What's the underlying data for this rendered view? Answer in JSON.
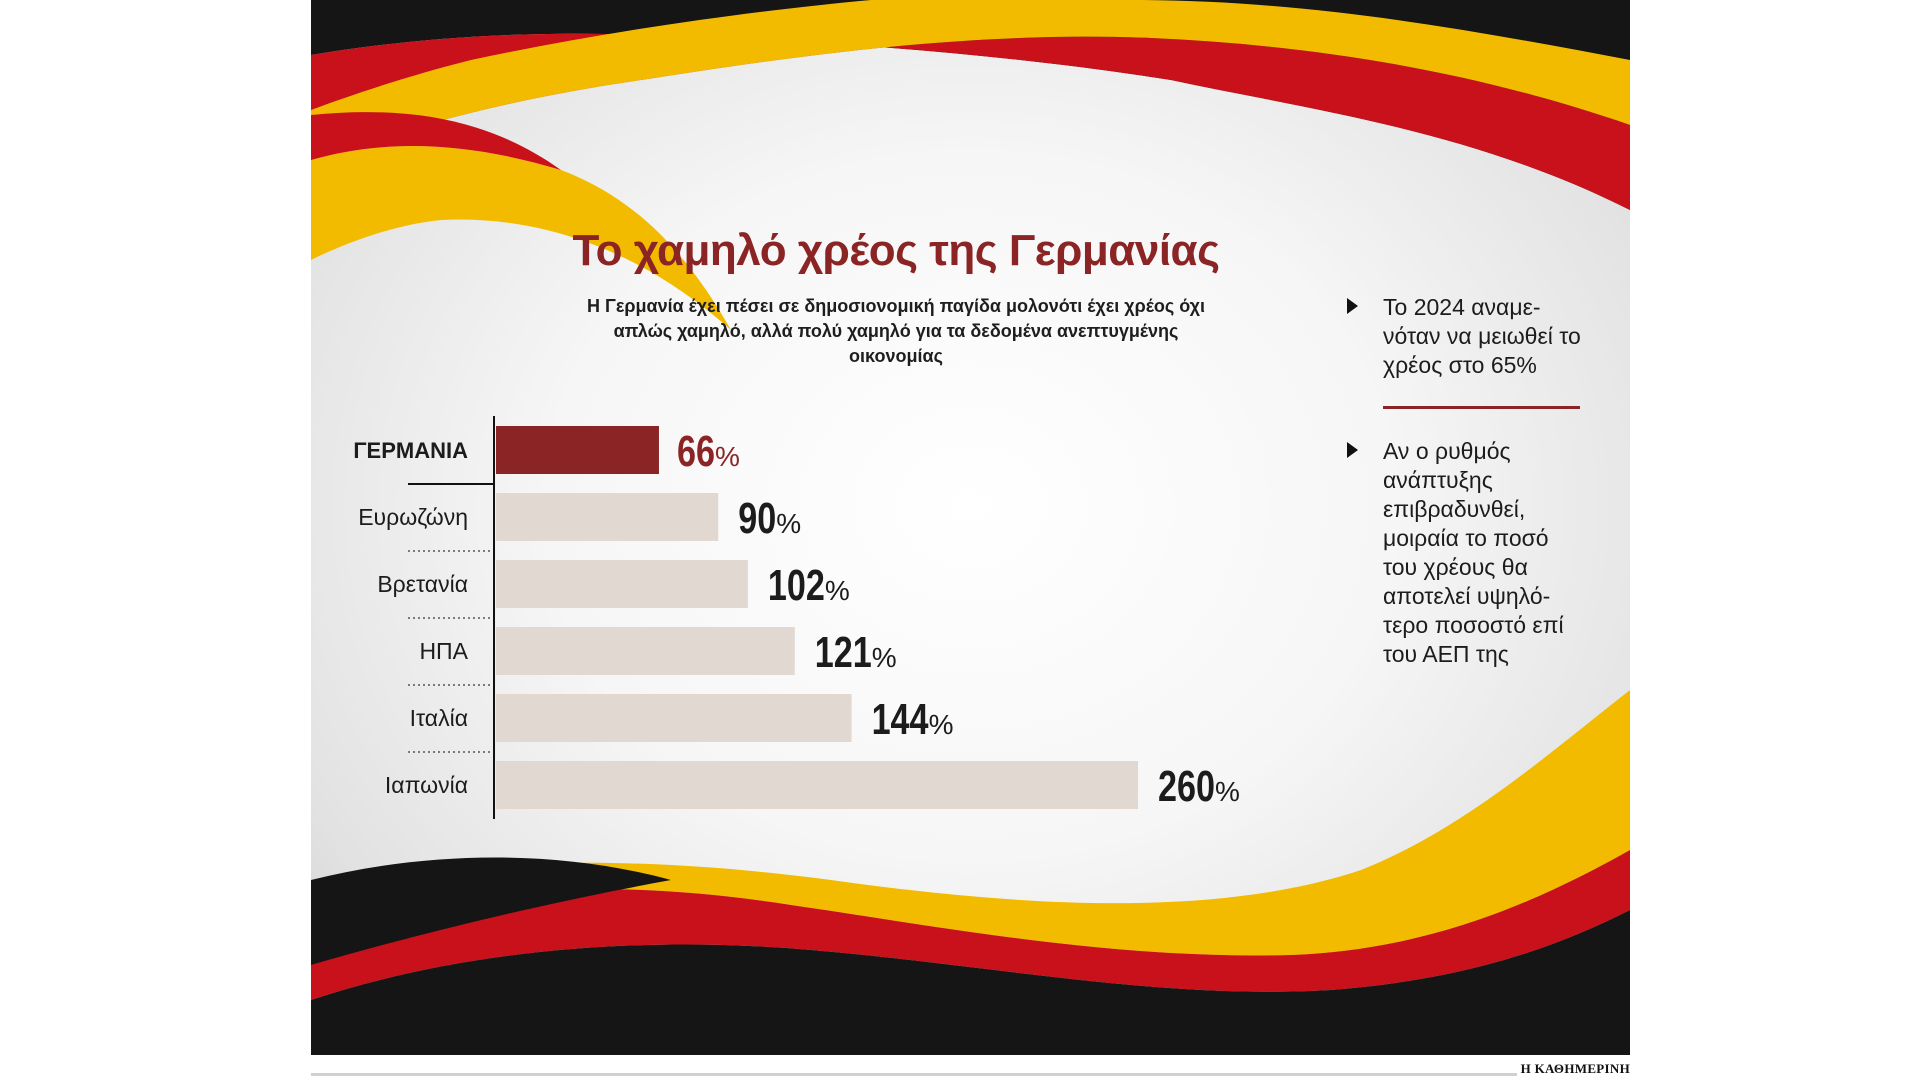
{
  "title": "Το χαμηλό χρέος της Γερμανίας",
  "subtitle": "Η Γερμανία έχει πέσει σε δημοσιονομική παγίδα μολονότι έχει χρέος όχι απλώς χαμηλό, αλλά πολύ χαμηλό για τα δεδομένα ανεπτυγμένης οικονομίας",
  "notes": [
    "Το 2024 αναμε-νόταν να μειωθεί το χρέος στο 65%",
    "Αν ο ρυθμός ανάπτυξης επιβραδυνθεί, μοιραία το ποσό του χρέους θα αποτελεί υψηλό-τερο ποσοστό επί του ΑΕΠ της"
  ],
  "credit": "Η ΚΑΘΗΜΕΡΙΝΗ",
  "colors": {
    "accent": "#8b2525",
    "bar": "#e0d8d1",
    "flag_black": "#151515",
    "flag_red": "#c8111a",
    "flag_gold": "#f2bb00"
  },
  "chart_data": {
    "type": "bar",
    "orientation": "horizontal",
    "categories": [
      "ΓΕΡΜΑΝΙΑ",
      "Ευρωζώνη",
      "Βρετανία",
      "ΗΠΑ",
      "Ιταλία",
      "Ιαπωνία"
    ],
    "values": [
      66,
      90,
      102,
      121,
      144,
      260
    ],
    "value_labels": [
      "66",
      "90",
      "102",
      "121",
      "144",
      "260"
    ],
    "unit": "%",
    "highlight_index": 0,
    "xlim": [
      0,
      260
    ],
    "grid": false
  }
}
